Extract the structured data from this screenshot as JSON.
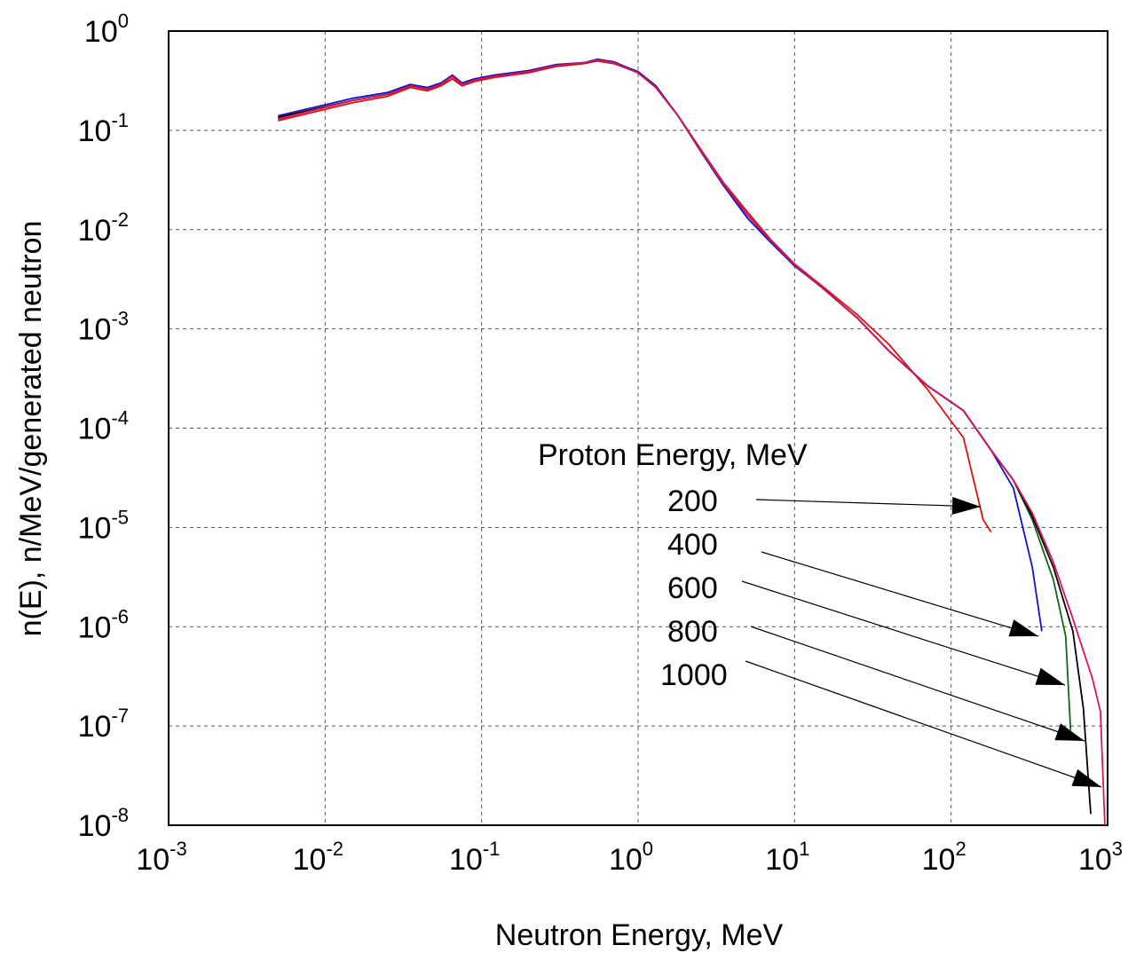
{
  "chart_data": {
    "type": "line",
    "xlabel": "Neutron Energy, MeV",
    "ylabel": "n(E), n/MeV/generated neutron",
    "xscale": "log",
    "yscale": "log",
    "xlim": [
      0.001,
      1000
    ],
    "ylim": [
      1e-08,
      1
    ],
    "grid": true,
    "x_ticks": [
      {
        "base": "10",
        "exp": "-3"
      },
      {
        "base": "10",
        "exp": "-2"
      },
      {
        "base": "10",
        "exp": "-1"
      },
      {
        "base": "10",
        "exp": "0"
      },
      {
        "base": "10",
        "exp": "1"
      },
      {
        "base": "10",
        "exp": "2"
      },
      {
        "base": "10",
        "exp": "3"
      }
    ],
    "y_ticks": [
      {
        "base": "10",
        "exp": "0"
      },
      {
        "base": "10",
        "exp": "-1"
      },
      {
        "base": "10",
        "exp": "-2"
      },
      {
        "base": "10",
        "exp": "-3"
      },
      {
        "base": "10",
        "exp": "-4"
      },
      {
        "base": "10",
        "exp": "-5"
      },
      {
        "base": "10",
        "exp": "-6"
      },
      {
        "base": "10",
        "exp": "-7"
      },
      {
        "base": "10",
        "exp": "-8"
      }
    ],
    "legend": {
      "title": "Proton Energy, MeV",
      "placement": "right"
    },
    "series": [
      {
        "name": "200",
        "color": "#dd1111",
        "x": [
          0.005,
          0.015,
          0.025,
          0.035,
          0.045,
          0.055,
          0.065,
          0.075,
          0.09,
          0.12,
          0.2,
          0.3,
          0.45,
          0.55,
          0.7,
          0.85,
          1.0,
          1.3,
          1.8,
          2.5,
          3.5,
          5,
          7,
          10,
          15,
          25,
          40,
          70,
          120,
          160,
          180
        ],
        "y": [
          0.125,
          0.19,
          0.22,
          0.27,
          0.25,
          0.28,
          0.33,
          0.28,
          0.31,
          0.34,
          0.38,
          0.44,
          0.47,
          0.5,
          0.47,
          0.42,
          0.38,
          0.27,
          0.14,
          0.065,
          0.03,
          0.015,
          0.008,
          0.0045,
          0.0027,
          0.0014,
          0.0007,
          0.00025,
          8e-05,
          1.2e-05,
          9e-06
        ]
      },
      {
        "name": "400",
        "color": "#1111cc",
        "x": [
          0.005,
          0.015,
          0.025,
          0.035,
          0.045,
          0.055,
          0.065,
          0.075,
          0.09,
          0.12,
          0.2,
          0.3,
          0.45,
          0.55,
          0.7,
          0.85,
          1.0,
          1.3,
          1.8,
          2.5,
          3.5,
          5,
          7,
          10,
          15,
          25,
          40,
          70,
          120,
          180,
          250,
          330,
          380
        ],
        "y": [
          0.14,
          0.21,
          0.24,
          0.29,
          0.27,
          0.3,
          0.36,
          0.3,
          0.33,
          0.36,
          0.4,
          0.46,
          0.48,
          0.52,
          0.49,
          0.43,
          0.39,
          0.28,
          0.14,
          0.062,
          0.028,
          0.013,
          0.0075,
          0.0043,
          0.0026,
          0.0013,
          0.0006,
          0.00027,
          0.00015,
          6e-05,
          2.5e-05,
          4e-06,
          9e-07
        ]
      },
      {
        "name": "600",
        "color": "#116611",
        "x": [
          0.005,
          0.015,
          0.025,
          0.035,
          0.045,
          0.055,
          0.065,
          0.075,
          0.09,
          0.12,
          0.2,
          0.3,
          0.45,
          0.55,
          0.7,
          0.85,
          1.0,
          1.3,
          1.8,
          2.5,
          3.5,
          5,
          7,
          10,
          15,
          25,
          40,
          70,
          120,
          180,
          250,
          330,
          450,
          540,
          580
        ],
        "y": [
          0.13,
          0.2,
          0.23,
          0.28,
          0.26,
          0.29,
          0.35,
          0.29,
          0.32,
          0.35,
          0.39,
          0.45,
          0.48,
          0.51,
          0.48,
          0.42,
          0.38,
          0.27,
          0.14,
          0.063,
          0.029,
          0.014,
          0.0078,
          0.0044,
          0.0026,
          0.0013,
          0.0006,
          0.00027,
          0.00015,
          6e-05,
          3e-05,
          1.2e-05,
          3e-06,
          8e-07,
          9e-08
        ]
      },
      {
        "name": "800",
        "color": "#000000",
        "x": [
          0.005,
          0.015,
          0.025,
          0.035,
          0.045,
          0.055,
          0.065,
          0.075,
          0.09,
          0.12,
          0.2,
          0.3,
          0.45,
          0.55,
          0.7,
          0.85,
          1.0,
          1.3,
          1.8,
          2.5,
          3.5,
          5,
          7,
          10,
          15,
          25,
          40,
          70,
          120,
          180,
          250,
          330,
          450,
          600,
          700,
          780
        ],
        "y": [
          0.135,
          0.2,
          0.23,
          0.28,
          0.26,
          0.29,
          0.35,
          0.29,
          0.32,
          0.35,
          0.39,
          0.45,
          0.48,
          0.51,
          0.48,
          0.42,
          0.38,
          0.27,
          0.14,
          0.063,
          0.029,
          0.014,
          0.0078,
          0.0044,
          0.0026,
          0.0013,
          0.0006,
          0.00027,
          0.00015,
          6e-05,
          3e-05,
          1.3e-05,
          4e-06,
          9e-07,
          1.5e-07,
          1.3e-08
        ]
      },
      {
        "name": "1000",
        "color": "#dd1166",
        "x": [
          0.005,
          0.015,
          0.025,
          0.035,
          0.045,
          0.055,
          0.065,
          0.075,
          0.09,
          0.12,
          0.2,
          0.3,
          0.45,
          0.55,
          0.7,
          0.85,
          1.0,
          1.3,
          1.8,
          2.5,
          3.5,
          5,
          7,
          10,
          15,
          25,
          40,
          70,
          120,
          180,
          250,
          330,
          450,
          600,
          800,
          900,
          960
        ],
        "y": [
          0.13,
          0.2,
          0.23,
          0.28,
          0.26,
          0.29,
          0.35,
          0.29,
          0.32,
          0.35,
          0.39,
          0.45,
          0.48,
          0.51,
          0.48,
          0.42,
          0.38,
          0.27,
          0.14,
          0.063,
          0.029,
          0.014,
          0.0078,
          0.0044,
          0.0026,
          0.0013,
          0.0006,
          0.00027,
          0.00015,
          6e-05,
          3e-05,
          1.4e-05,
          4.5e-06,
          1.2e-06,
          3e-07,
          1.4e-07,
          1e-08
        ]
      }
    ]
  }
}
